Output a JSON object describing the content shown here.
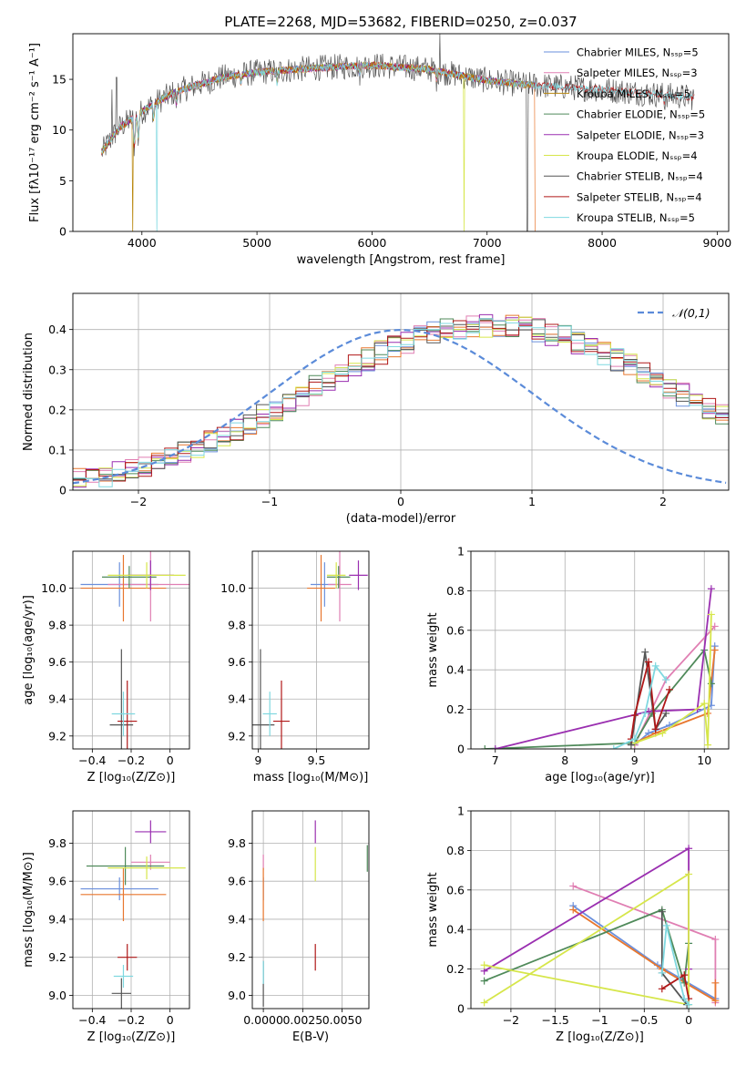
{
  "figure_title": "PLATE=2268, MJD=53682, FIBERID=0250, z=0.037",
  "colors": {
    "Chabrier MILES": "#6a8fdc",
    "Salpeter MILES": "#e07fb3",
    "Kroupa MILES": "#b8860b",
    "Chabrier ELODIE": "#4f8a5a",
    "Salpeter ELODIE": "#9a2fb0",
    "Kroupa ELODIE": "#d6e64a",
    "Chabrier STELIB": "#555555",
    "Salpeter STELIB": "#b01818",
    "Kroupa STELIB": "#7fd8e0",
    "orange": "#e8772e",
    "normal_curve": "#5b8bd9"
  },
  "chart_data": [
    {
      "id": "spectrum",
      "type": "line",
      "title": "PLATE=2268, MJD=53682, FIBERID=0250, z=0.037",
      "xlabel": "wavelength [Angstrom, rest frame]",
      "ylabel": "Flux [fλ10⁻¹⁷ erg cm⁻² s⁻¹ A⁻¹]",
      "xlim": [
        3400,
        9100
      ],
      "ylim": [
        0,
        19.5
      ],
      "xticks": [
        4000,
        5000,
        6000,
        7000,
        8000,
        9000
      ],
      "yticks": [
        0,
        5,
        10,
        15
      ],
      "legend_position": "top-right",
      "legend": [
        {
          "label": "Chabrier MILES, Nₛₛₚ=5",
          "model": "Chabrier MILES"
        },
        {
          "label": "Salpeter MILES, Nₛₛₚ=3",
          "model": "Salpeter MILES"
        },
        {
          "label": "Kroupa MILES, Nₛₛₚ=5",
          "model": "Kroupa MILES"
        },
        {
          "label": "Chabrier ELODIE, Nₛₛₚ=5",
          "model": "Chabrier ELODIE"
        },
        {
          "label": "Salpeter ELODIE, Nₛₛₚ=3",
          "model": "Salpeter ELODIE"
        },
        {
          "label": "Kroupa ELODIE, Nₛₛₚ=4",
          "model": "Kroupa ELODIE"
        },
        {
          "label": "Chabrier STELIB, Nₛₛₚ=4",
          "model": "Chabrier STELIB"
        },
        {
          "label": "Salpeter STELIB, Nₛₛₚ=4",
          "model": "Salpeter STELIB"
        },
        {
          "label": "Kroupa STELIB, Nₛₛₚ=5",
          "model": "Kroupa STELIB"
        }
      ],
      "continuum": [
        [
          3650,
          7.8
        ],
        [
          3800,
          10.2
        ],
        [
          3950,
          11.4
        ],
        [
          4100,
          12.6
        ],
        [
          4300,
          13.8
        ],
        [
          4500,
          14.5
        ],
        [
          4700,
          15.2
        ],
        [
          5000,
          15.7
        ],
        [
          5500,
          16.1
        ],
        [
          6000,
          16.4
        ],
        [
          6500,
          16.0
        ],
        [
          6800,
          15.3
        ],
        [
          7000,
          14.9
        ],
        [
          7300,
          14.5
        ],
        [
          7600,
          14.3
        ],
        [
          8000,
          14.0
        ],
        [
          8400,
          13.6
        ],
        [
          8800,
          13.2
        ]
      ],
      "absorption_features": [
        [
          3934,
          3.0
        ],
        [
          3969,
          2.5
        ],
        [
          4102,
          1.5
        ],
        [
          4300,
          1.2
        ],
        [
          4861,
          0.8
        ],
        [
          5175,
          1.2
        ],
        [
          5893,
          0.8
        ],
        [
          6563,
          1.0
        ],
        [
          8542,
          0.7
        ]
      ],
      "dropouts": [
        {
          "model": "Kroupa STELIB",
          "x": 4130
        },
        {
          "model": "Kroupa MILES",
          "x": 3920
        },
        {
          "model": "Kroupa ELODIE",
          "x": 6800
        },
        {
          "model": "Chabrier STELIB",
          "x": 7350
        },
        {
          "model": "orange",
          "x": 7420
        }
      ],
      "spikes": [
        {
          "model": "Chabrier STELIB",
          "x": 6590,
          "y": 19.5
        },
        {
          "model": "Chabrier STELIB",
          "x": 3740,
          "y": 14.0
        },
        {
          "model": "Chabrier STELIB",
          "x": 3780,
          "y": 15.2
        }
      ]
    },
    {
      "id": "residuals",
      "type": "histogram",
      "xlabel": "(data-model)/error",
      "ylabel": "Normed distribution",
      "xlim": [
        -2.5,
        2.5
      ],
      "ylim": [
        0,
        0.49
      ],
      "xticks": [
        -2,
        -1,
        0,
        1,
        2
      ],
      "yticks": [
        0.0,
        0.1,
        0.2,
        0.3,
        0.4
      ],
      "legend_position": "top-right",
      "legend": [
        {
          "label": "𝒩(0,1)"
        }
      ],
      "normal": {
        "mean": 0,
        "sigma": 1
      },
      "bin_edges_start": -2.5,
      "bin_width": 0.1,
      "base_profile": {
        "mean": 0.22,
        "sigma": 0.98,
        "peak": 0.41
      },
      "bin_values": [
        0.029,
        0.033,
        0.038,
        0.044,
        0.052,
        0.061,
        0.071,
        0.083,
        0.095,
        0.108,
        0.122,
        0.137,
        0.152,
        0.168,
        0.185,
        0.202,
        0.22,
        0.238,
        0.256,
        0.275,
        0.293,
        0.31,
        0.326,
        0.342,
        0.356,
        0.369,
        0.381,
        0.39,
        0.398,
        0.404,
        0.408,
        0.41,
        0.41,
        0.408,
        0.404,
        0.398,
        0.39,
        0.381,
        0.369,
        0.356,
        0.342,
        0.326,
        0.31,
        0.293,
        0.275,
        0.256,
        0.238,
        0.22,
        0.202,
        0.185
      ]
    },
    {
      "id": "age-vs-Z",
      "type": "errorbar",
      "xlabel": "Z [log₁₀(Z/Z⊙)]",
      "ylabel": "age  [log₁₀(age/yr)]",
      "xlim": [
        -0.5,
        0.1
      ],
      "ylim": [
        9.13,
        10.2
      ],
      "xticks": [
        -0.4,
        -0.2,
        0.0
      ],
      "yticks": [
        9.2,
        9.4,
        9.6,
        9.8,
        10.0
      ],
      "points": [
        {
          "model": "Chabrier MILES",
          "x": -0.26,
          "xerr": 0.2,
          "y": 10.02,
          "yerr": 0.12
        },
        {
          "model": "Salpeter MILES",
          "x": -0.1,
          "xerr": 0.22,
          "y": 10.02,
          "yerr": 0.2
        },
        {
          "model": "orange",
          "x": -0.24,
          "xerr": 0.22,
          "y": 10.0,
          "yerr": 0.18
        },
        {
          "model": "Chabrier ELODIE",
          "x": -0.21,
          "xerr": 0.14,
          "y": 10.06,
          "yerr": 0.06
        },
        {
          "model": "Salpeter ELODIE",
          "x": -0.1,
          "xerr": 0.12,
          "y": 10.07,
          "yerr": 0.08
        },
        {
          "model": "Kroupa ELODIE",
          "x": -0.12,
          "xerr": 0.2,
          "y": 10.07,
          "yerr": 0.07
        },
        {
          "model": "Chabrier STELIB",
          "x": -0.25,
          "xerr": 0.06,
          "y": 9.26,
          "yerr": 0.41
        },
        {
          "model": "Salpeter STELIB",
          "x": -0.22,
          "xerr": 0.05,
          "y": 9.28,
          "yerr": 0.22
        },
        {
          "model": "Kroupa STELIB",
          "x": -0.24,
          "xerr": 0.06,
          "y": 9.32,
          "yerr": 0.12
        }
      ]
    },
    {
      "id": "age-vs-mass",
      "type": "errorbar",
      "xlabel": "mass [log₁₀(M/M⊙)]",
      "ylabel": "",
      "xlim": [
        8.95,
        9.95
      ],
      "ylim": [
        9.13,
        10.2
      ],
      "xticks": [
        9.0,
        9.5
      ],
      "yticks": [
        9.2,
        9.4,
        9.6,
        9.8,
        10.0
      ],
      "points": [
        {
          "model": "Chabrier MILES",
          "x": 9.57,
          "xerr": 0.12,
          "y": 10.02,
          "yerr": 0.12
        },
        {
          "model": "Salpeter MILES",
          "x": 9.7,
          "xerr": 0.1,
          "y": 10.02,
          "yerr": 0.2
        },
        {
          "model": "orange",
          "x": 9.54,
          "xerr": 0.12,
          "y": 10.0,
          "yerr": 0.18
        },
        {
          "model": "Chabrier ELODIE",
          "x": 9.69,
          "xerr": 0.1,
          "y": 10.06,
          "yerr": 0.06
        },
        {
          "model": "Salpeter ELODIE",
          "x": 9.86,
          "xerr": 0.08,
          "y": 10.07,
          "yerr": 0.08
        },
        {
          "model": "Kroupa ELODIE",
          "x": 9.67,
          "xerr": 0.08,
          "y": 10.07,
          "yerr": 0.07
        },
        {
          "model": "Chabrier STELIB",
          "x": 9.02,
          "xerr": 0.12,
          "y": 9.26,
          "yerr": 0.41
        },
        {
          "model": "Salpeter STELIB",
          "x": 9.2,
          "xerr": 0.07,
          "y": 9.28,
          "yerr": 0.22
        },
        {
          "model": "Kroupa STELIB",
          "x": 9.1,
          "xerr": 0.06,
          "y": 9.32,
          "yerr": 0.12
        }
      ]
    },
    {
      "id": "weight-vs-age",
      "type": "line",
      "xlabel": "age  [log₁₀(age/yr)]",
      "ylabel": "mass weight",
      "xlim": [
        6.65,
        10.35
      ],
      "ylim": [
        0,
        1
      ],
      "xticks": [
        7,
        8,
        9,
        10
      ],
      "yticks": [
        0.0,
        0.2,
        0.4,
        0.6,
        0.8,
        1.0
      ],
      "series": [
        {
          "model": "Chabrier MILES",
          "x": [
            9.0,
            9.2,
            9.5,
            10.1,
            10.15
          ],
          "y": [
            0.02,
            0.08,
            0.12,
            0.22,
            0.52
          ]
        },
        {
          "model": "Salpeter MILES",
          "x": [
            9.0,
            9.45,
            10.15
          ],
          "y": [
            0.02,
            0.35,
            0.62
          ]
        },
        {
          "model": "orange",
          "x": [
            9.0,
            9.3,
            10.05,
            10.15
          ],
          "y": [
            0.03,
            0.08,
            0.18,
            0.5
          ]
        },
        {
          "model": "Chabrier ELODIE",
          "x": [
            6.85,
            9.0,
            9.25,
            10.0,
            10.1
          ],
          "y": [
            0.0,
            0.03,
            0.18,
            0.5,
            0.33
          ]
        },
        {
          "model": "Salpeter ELODIE",
          "x": [
            7.0,
            9.2,
            9.9,
            10.1
          ],
          "y": [
            0.0,
            0.19,
            0.2,
            0.81
          ]
        },
        {
          "model": "Kroupa ELODIE",
          "x": [
            9.0,
            9.4,
            10.0,
            10.05,
            10.1
          ],
          "y": [
            0.03,
            0.08,
            0.23,
            0.02,
            0.68
          ]
        },
        {
          "model": "Chabrier STELIB",
          "x": [
            8.95,
            9.15,
            9.3,
            9.45
          ],
          "y": [
            0.02,
            0.49,
            0.1,
            0.18
          ]
        },
        {
          "model": "Salpeter STELIB",
          "x": [
            8.95,
            9.0,
            9.2,
            9.3,
            9.5
          ],
          "y": [
            0.05,
            0.17,
            0.44,
            0.1,
            0.3
          ]
        },
        {
          "model": "Kroupa STELIB",
          "x": [
            8.7,
            9.0,
            9.15,
            9.3,
            9.45
          ],
          "y": [
            0.0,
            0.05,
            0.18,
            0.42,
            0.35
          ]
        }
      ]
    },
    {
      "id": "mass-vs-Z",
      "type": "errorbar",
      "xlabel": "Z [log₁₀(Z/Z⊙)]",
      "ylabel": "mass [log₁₀(M/M⊙)]",
      "xlim": [
        -0.5,
        0.1
      ],
      "ylim": [
        8.93,
        9.97
      ],
      "xticks": [
        -0.4,
        -0.2,
        0.0
      ],
      "yticks": [
        9.0,
        9.2,
        9.4,
        9.6,
        9.8
      ],
      "points": [
        {
          "model": "Chabrier MILES",
          "x": -0.26,
          "xerr": 0.2,
          "y": 9.56,
          "yerr": 0.06
        },
        {
          "model": "Salpeter MILES",
          "x": -0.1,
          "xerr": 0.1,
          "y": 9.7,
          "yerr": 0.04
        },
        {
          "model": "orange",
          "x": -0.24,
          "xerr": 0.22,
          "y": 9.53,
          "yerr": 0.14
        },
        {
          "model": "Chabrier ELODIE",
          "x": -0.23,
          "xerr": 0.2,
          "y": 9.68,
          "yerr": 0.1
        },
        {
          "model": "Salpeter ELODIE",
          "x": -0.1,
          "xerr": 0.08,
          "y": 9.86,
          "yerr": 0.06
        },
        {
          "model": "Kroupa ELODIE",
          "x": -0.12,
          "xerr": 0.2,
          "y": 9.67,
          "yerr": 0.06
        },
        {
          "model": "Chabrier STELIB",
          "x": -0.25,
          "xerr": 0.05,
          "y": 9.01,
          "yerr": 0.08
        },
        {
          "model": "Salpeter STELIB",
          "x": -0.22,
          "xerr": 0.05,
          "y": 9.2,
          "yerr": 0.07
        },
        {
          "model": "Kroupa STELIB",
          "x": -0.24,
          "xerr": 0.05,
          "y": 9.1,
          "yerr": 0.06
        }
      ]
    },
    {
      "id": "mass-vs-ebv",
      "type": "errorbar",
      "xlabel": "E(B-V)",
      "ylabel": "",
      "xlim": [
        -0.0007,
        0.0067
      ],
      "ylim": [
        8.93,
        9.97
      ],
      "xticks": [
        0.0,
        0.0025,
        0.005
      ],
      "xticklabels": [
        "0.0000",
        "0.0025",
        "0.0050"
      ],
      "yticks": [
        9.0,
        9.2,
        9.4,
        9.6,
        9.8
      ],
      "points": [
        {
          "model": "Chabrier MILES",
          "x": 0.0,
          "xerr": 0,
          "y": 9.56,
          "yerr": 0.06
        },
        {
          "model": "Salpeter MILES",
          "x": 0.0,
          "xerr": 0,
          "y": 9.7,
          "yerr": 0.04
        },
        {
          "model": "orange",
          "x": 0.0,
          "xerr": 0,
          "y": 9.53,
          "yerr": 0.14
        },
        {
          "model": "Chabrier ELODIE",
          "x": 0.0066,
          "xerr": 0,
          "y": 9.72,
          "yerr": 0.07
        },
        {
          "model": "Salpeter ELODIE",
          "x": 0.0033,
          "xerr": 0,
          "y": 9.86,
          "yerr": 0.06
        },
        {
          "model": "Kroupa ELODIE",
          "x": 0.0033,
          "xerr": 0,
          "y": 9.69,
          "yerr": 0.09
        },
        {
          "model": "Chabrier STELIB",
          "x": 0.0,
          "xerr": 0,
          "y": 9.06,
          "yerr": 0.12
        },
        {
          "model": "Salpeter STELIB",
          "x": 0.0033,
          "xerr": 0,
          "y": 9.2,
          "yerr": 0.07
        },
        {
          "model": "Kroupa STELIB",
          "x": 0.0,
          "xerr": 0,
          "y": 9.12,
          "yerr": 0.06
        }
      ]
    },
    {
      "id": "weight-vs-Z",
      "type": "line",
      "xlabel": "Z [log₁₀(Z/Z⊙)]",
      "ylabel": "mass weight",
      "xlim": [
        -2.45,
        0.45
      ],
      "ylim": [
        0,
        1
      ],
      "xticks": [
        -2.0,
        -1.5,
        -1.0,
        -0.5,
        0.0
      ],
      "yticks": [
        0.0,
        0.2,
        0.4,
        0.6,
        0.8,
        1.0
      ],
      "series": [
        {
          "model": "Chabrier MILES",
          "x": [
            -1.3,
            -0.35,
            0.3
          ],
          "y": [
            0.52,
            0.22,
            0.05
          ]
        },
        {
          "model": "Salpeter MILES",
          "x": [
            -1.3,
            0.3,
            0.3
          ],
          "y": [
            0.62,
            0.35,
            0.03
          ]
        },
        {
          "model": "orange",
          "x": [
            -1.3,
            -0.3,
            0.3,
            0.3
          ],
          "y": [
            0.5,
            0.2,
            0.04,
            0.13
          ]
        },
        {
          "model": "Chabrier ELODIE",
          "x": [
            -2.3,
            -0.3,
            -0.05,
            0.0
          ],
          "y": [
            0.14,
            0.5,
            0.13,
            0.33
          ]
        },
        {
          "model": "Salpeter ELODIE",
          "x": [
            -2.3,
            0.0,
            0.0
          ],
          "y": [
            0.19,
            0.81,
            0.2
          ]
        },
        {
          "model": "Kroupa ELODIE",
          "x": [
            -2.3,
            0.0,
            0.0,
            -2.3
          ],
          "y": [
            0.03,
            0.68,
            0.02,
            0.22
          ]
        },
        {
          "model": "Chabrier STELIB",
          "x": [
            -0.3,
            -0.3,
            -0.02
          ],
          "y": [
            0.49,
            0.18,
            0.02
          ]
        },
        {
          "model": "Salpeter STELIB",
          "x": [
            -0.3,
            -0.05,
            0.0
          ],
          "y": [
            0.1,
            0.17,
            0.05
          ]
        },
        {
          "model": "Kroupa STELIB",
          "x": [
            -0.3,
            -0.25,
            -0.05,
            0.0
          ],
          "y": [
            0.18,
            0.42,
            0.05,
            0.02
          ]
        }
      ]
    }
  ]
}
